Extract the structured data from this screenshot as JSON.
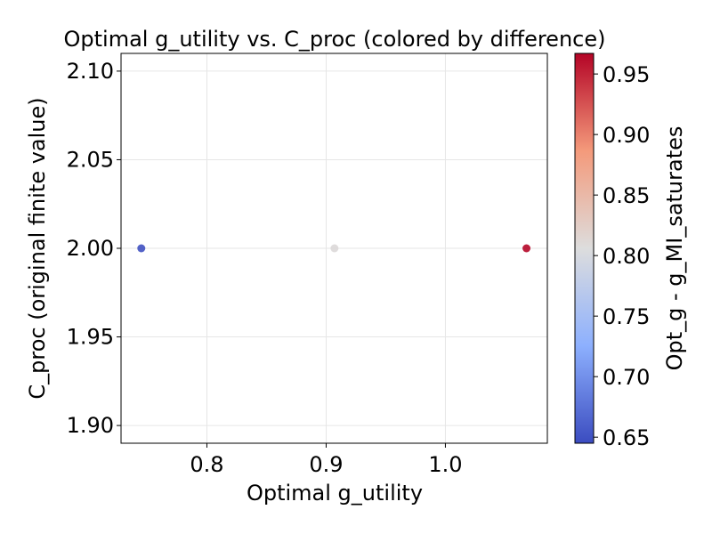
{
  "chart_data": {
    "type": "scatter",
    "title": "Optimal g_utility vs. C_proc (colored by difference)",
    "xlabel": "Optimal g_utility",
    "ylabel": "C_proc (original finite value)",
    "xlim": [
      0.728,
      1.0855
    ],
    "ylim": [
      1.89,
      2.11
    ],
    "xticks": [
      0.8,
      0.9,
      1.0
    ],
    "xtick_labels": [
      "0.8",
      "0.9",
      "1.0"
    ],
    "yticks": [
      1.9,
      1.95,
      2.0,
      2.05,
      2.1
    ],
    "ytick_labels": [
      "1.90",
      "1.95",
      "2.00",
      "2.05",
      "2.10"
    ],
    "grid": true,
    "colormap": "coolwarm",
    "points": [
      {
        "x": 0.745,
        "y": 2.0,
        "c": 0.65
      },
      {
        "x": 0.907,
        "y": 2.0,
        "c": 0.81
      },
      {
        "x": 1.068,
        "y": 2.0,
        "c": 0.965
      }
    ],
    "colorbar": {
      "label": "Opt_g - g_MI_saturates",
      "range": [
        0.645,
        0.967
      ],
      "ticks": [
        0.65,
        0.7,
        0.75,
        0.8,
        0.85,
        0.9,
        0.95
      ],
      "tick_labels": [
        "0.65",
        "0.70",
        "0.75",
        "0.80",
        "0.85",
        "0.90",
        "0.95"
      ]
    }
  },
  "colors": {
    "cmap_low": "#3b4cc0",
    "cmap_mid": "#dddddd",
    "cmap_high": "#b40426",
    "grid": "#e6e6e6",
    "axis": "#000000"
  }
}
